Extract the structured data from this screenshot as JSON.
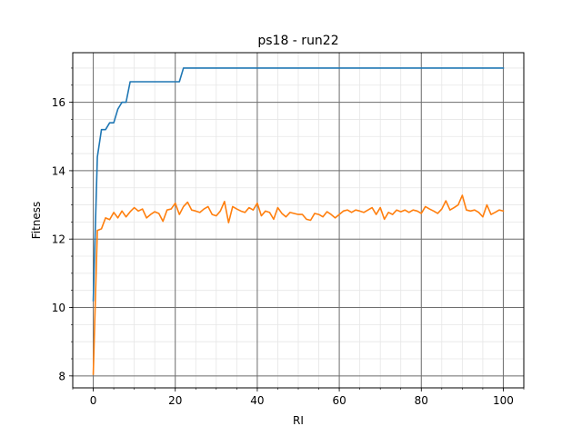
{
  "chart_data": {
    "type": "line",
    "title": "ps18 - run22",
    "xlabel": "RI",
    "ylabel": "Fitness",
    "xlim": [
      -5,
      105
    ],
    "ylim": [
      7.65,
      17.45
    ],
    "xticks": [
      0,
      20,
      40,
      60,
      80,
      100
    ],
    "yticks": [
      8,
      10,
      12,
      14,
      16
    ],
    "x_minor_step": 5,
    "y_minor_step": 0.5,
    "grid": "major and minor",
    "legend": "none",
    "series": [
      {
        "color": "#1f77b4",
        "x": [
          0,
          1,
          2,
          3,
          4,
          5,
          6,
          7,
          8,
          9,
          10,
          11,
          12,
          13,
          14,
          15,
          16,
          17,
          18,
          19,
          20,
          21,
          22,
          23,
          24,
          25,
          26,
          27,
          28,
          29,
          30,
          31,
          32,
          33,
          34,
          35,
          36,
          37,
          38,
          39,
          40,
          41,
          42,
          43,
          44,
          45,
          46,
          47,
          48,
          49,
          50,
          51,
          52,
          53,
          54,
          55,
          56,
          57,
          58,
          59,
          60,
          61,
          62,
          63,
          64,
          65,
          66,
          67,
          68,
          69,
          70,
          71,
          72,
          73,
          74,
          75,
          76,
          77,
          78,
          79,
          80,
          81,
          82,
          83,
          84,
          85,
          86,
          87,
          88,
          89,
          90,
          91,
          92,
          93,
          94,
          95,
          96,
          97,
          98,
          99,
          100
        ],
        "values": [
          10.2,
          14.4,
          15.2,
          15.2,
          15.4,
          15.4,
          15.8,
          16.0,
          16.0,
          16.6,
          16.6,
          16.6,
          16.6,
          16.6,
          16.6,
          16.6,
          16.6,
          16.6,
          16.6,
          16.6,
          16.6,
          16.6,
          17.0,
          17.0,
          17.0,
          17.0,
          17.0,
          17.0,
          17.0,
          17.0,
          17.0,
          17.0,
          17.0,
          17.0,
          17.0,
          17.0,
          17.0,
          17.0,
          17.0,
          17.0,
          17.0,
          17.0,
          17.0,
          17.0,
          17.0,
          17.0,
          17.0,
          17.0,
          17.0,
          17.0,
          17.0,
          17.0,
          17.0,
          17.0,
          17.0,
          17.0,
          17.0,
          17.0,
          17.0,
          17.0,
          17.0,
          17.0,
          17.0,
          17.0,
          17.0,
          17.0,
          17.0,
          17.0,
          17.0,
          17.0,
          17.0,
          17.0,
          17.0,
          17.0,
          17.0,
          17.0,
          17.0,
          17.0,
          17.0,
          17.0,
          17.0,
          17.0,
          17.0,
          17.0,
          17.0,
          17.0,
          17.0,
          17.0,
          17.0,
          17.0,
          17.0,
          17.0,
          17.0,
          17.0,
          17.0,
          17.0,
          17.0,
          17.0,
          17.0,
          17.0,
          17.0
        ]
      },
      {
        "color": "#ff7f0e",
        "x": [
          0,
          1,
          2,
          3,
          4,
          5,
          6,
          7,
          8,
          9,
          10,
          11,
          12,
          13,
          14,
          15,
          16,
          17,
          18,
          19,
          20,
          21,
          22,
          23,
          24,
          25,
          26,
          27,
          28,
          29,
          30,
          31,
          32,
          33,
          34,
          35,
          36,
          37,
          38,
          39,
          40,
          41,
          42,
          43,
          44,
          45,
          46,
          47,
          48,
          49,
          50,
          51,
          52,
          53,
          54,
          55,
          56,
          57,
          58,
          59,
          60,
          61,
          62,
          63,
          64,
          65,
          66,
          67,
          68,
          69,
          70,
          71,
          72,
          73,
          74,
          75,
          76,
          77,
          78,
          79,
          80,
          81,
          82,
          83,
          84,
          85,
          86,
          87,
          88,
          89,
          90,
          91,
          92,
          93,
          94,
          95,
          96,
          97,
          98,
          99,
          100
        ],
        "values": [
          8.05,
          12.25,
          12.3,
          12.62,
          12.57,
          12.78,
          12.62,
          12.82,
          12.65,
          12.8,
          12.92,
          12.82,
          12.88,
          12.62,
          12.72,
          12.8,
          12.75,
          12.52,
          12.85,
          12.88,
          13.05,
          12.72,
          12.95,
          13.08,
          12.85,
          12.82,
          12.78,
          12.88,
          12.95,
          12.72,
          12.68,
          12.82,
          13.1,
          12.48,
          12.95,
          12.88,
          12.82,
          12.78,
          12.92,
          12.85,
          13.05,
          12.68,
          12.82,
          12.78,
          12.58,
          12.92,
          12.75,
          12.65,
          12.78,
          12.75,
          12.72,
          12.72,
          12.58,
          12.55,
          12.75,
          12.72,
          12.65,
          12.8,
          12.72,
          12.62,
          12.72,
          12.82,
          12.85,
          12.78,
          12.85,
          12.82,
          12.78,
          12.85,
          12.92,
          12.72,
          12.92,
          12.58,
          12.78,
          12.72,
          12.85,
          12.8,
          12.85,
          12.78,
          12.85,
          12.82,
          12.75,
          12.95,
          12.88,
          12.82,
          12.75,
          12.88,
          13.12,
          12.85,
          12.92,
          13.0,
          13.28,
          12.85,
          12.82,
          12.85,
          12.78,
          12.65,
          13.0,
          12.72,
          12.78,
          12.85,
          12.82
        ]
      }
    ]
  }
}
